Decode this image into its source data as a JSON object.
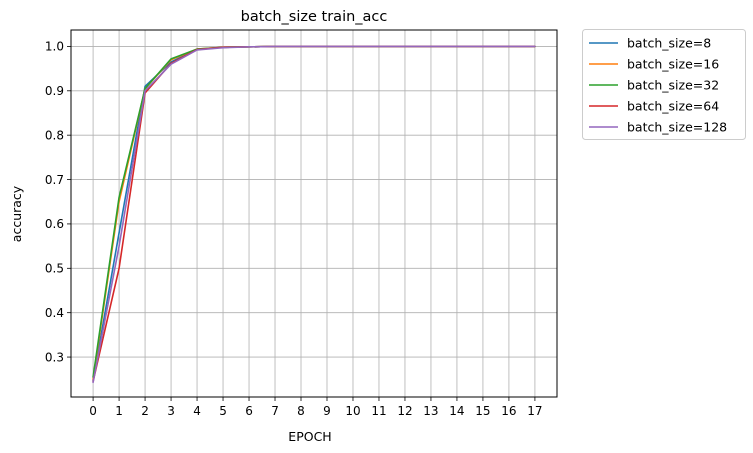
{
  "chart_data": {
    "type": "line",
    "title": "batch_size train_acc",
    "xlabel": "EPOCH",
    "ylabel": "accuracy",
    "x": [
      0,
      1,
      2,
      3,
      4,
      5,
      6,
      7,
      8,
      9,
      10,
      11,
      12,
      13,
      14,
      15,
      16,
      17
    ],
    "xticks": [
      "0",
      "1",
      "2",
      "3",
      "4",
      "5",
      "6",
      "7",
      "8",
      "9",
      "10",
      "11",
      "12",
      "13",
      "14",
      "15",
      "16",
      "17"
    ],
    "yticks": [
      "0.3",
      "0.4",
      "0.5",
      "0.6",
      "0.7",
      "0.8",
      "0.9",
      "1.0"
    ],
    "xlim": [
      -0.85,
      17.85
    ],
    "ylim": [
      0.21,
      1.037
    ],
    "grid": true,
    "legend_position": "outside-right-top",
    "series": [
      {
        "name": "batch_size=8",
        "color": "#1f77b4",
        "values": [
          0.247,
          0.58,
          0.91,
          0.965,
          0.993,
          0.998,
          0.999,
          1.0,
          1.0,
          1.0,
          1.0,
          1.0,
          1.0,
          1.0,
          1.0,
          1.0,
          1.0,
          1.0
        ]
      },
      {
        "name": "batch_size=16",
        "color": "#ff7f0e",
        "values": [
          0.25,
          0.65,
          0.905,
          0.97,
          0.994,
          0.998,
          0.999,
          1.0,
          1.0,
          1.0,
          1.0,
          1.0,
          1.0,
          1.0,
          1.0,
          1.0,
          1.0,
          1.0
        ]
      },
      {
        "name": "batch_size=32",
        "color": "#2ca02c",
        "values": [
          0.255,
          0.66,
          0.905,
          0.972,
          0.994,
          0.998,
          0.999,
          1.0,
          1.0,
          1.0,
          1.0,
          1.0,
          1.0,
          1.0,
          1.0,
          1.0,
          1.0,
          1.0
        ]
      },
      {
        "name": "batch_size=64",
        "color": "#d62728",
        "values": [
          0.245,
          0.5,
          0.895,
          0.962,
          0.993,
          0.998,
          0.999,
          1.0,
          1.0,
          1.0,
          1.0,
          1.0,
          1.0,
          1.0,
          1.0,
          1.0,
          1.0,
          1.0
        ]
      },
      {
        "name": "batch_size=128",
        "color": "#9467bd",
        "values": [
          0.243,
          0.55,
          0.9,
          0.96,
          0.992,
          0.997,
          0.999,
          1.0,
          1.0,
          1.0,
          1.0,
          1.0,
          1.0,
          1.0,
          1.0,
          1.0,
          1.0,
          1.0
        ]
      }
    ]
  }
}
